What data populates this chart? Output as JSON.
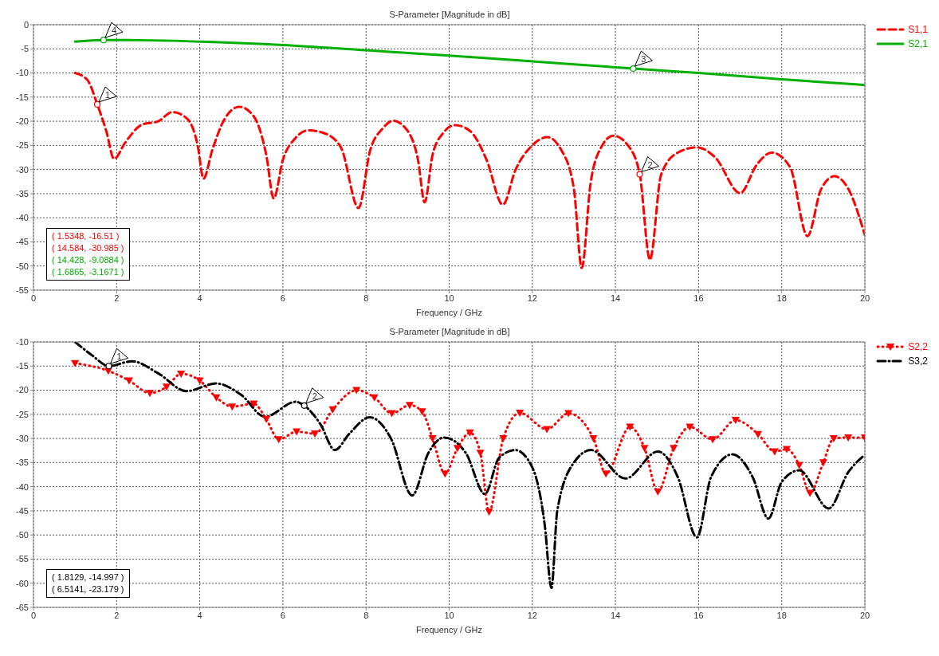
{
  "chart_data": [
    {
      "type": "line",
      "title": "S-Parameter [Magnitude in dB]",
      "xlabel": "Frequency / GHz",
      "xlim": [
        0,
        20
      ],
      "xticks": [
        0,
        2,
        4,
        6,
        8,
        10,
        12,
        14,
        16,
        18,
        20
      ],
      "ylim": [
        -55,
        0
      ],
      "yticks": [
        -55,
        -50,
        -45,
        -40,
        -35,
        -30,
        -25,
        -20,
        -15,
        -10,
        -5,
        0
      ],
      "grid": true,
      "legend": "top right",
      "series": [
        {
          "name": "S1,1",
          "color": "#ff0000",
          "line_style": "dashed",
          "marker": "none",
          "x": [
            1,
            1.3,
            1.5348,
            1.75,
            1.94,
            2.2,
            2.61,
            3.0,
            3.34,
            3.7,
            3.95,
            4.09,
            4.3,
            4.6,
            4.95,
            5.3,
            5.6,
            5.78,
            6.0,
            6.3,
            6.61,
            7.0,
            7.4,
            7.82,
            8.1,
            8.4,
            8.65,
            9.0,
            9.25,
            9.41,
            9.6,
            9.85,
            10.14,
            10.5,
            10.9,
            11.29,
            11.6,
            12.0,
            12.36,
            12.7,
            13.0,
            13.19,
            13.4,
            13.65,
            13.95,
            14.3,
            14.584,
            14.83,
            15.1,
            15.5,
            15.96,
            16.4,
            17.0,
            17.4,
            17.76,
            18.2,
            18.62,
            18.95,
            19.27,
            19.6,
            20
          ],
          "values": [
            -10,
            -11.5,
            -16.51,
            -22,
            -27.8,
            -24.5,
            -20.7,
            -20,
            -18.1,
            -19.5,
            -25,
            -31.9,
            -26,
            -19.5,
            -17.0,
            -19,
            -27,
            -36.0,
            -28,
            -23.5,
            -21.9,
            -22.5,
            -25.5,
            -38.0,
            -26,
            -21.5,
            -19.9,
            -22,
            -28,
            -36.8,
            -27,
            -22.5,
            -20.8,
            -22,
            -28,
            -37.3,
            -30,
            -25,
            -23.3,
            -26,
            -34,
            -50.4,
            -33,
            -25.5,
            -23.0,
            -25,
            -30.985,
            -48.7,
            -31,
            -26.5,
            -25.4,
            -27.5,
            -34.9,
            -29,
            -26.5,
            -29.5,
            -43.8,
            -34,
            -31.4,
            -34,
            -43.6
          ]
        },
        {
          "name": "S2,1",
          "color": "#00b000",
          "line_style": "solid",
          "marker": "none",
          "x": [
            1,
            1.6865,
            2.5,
            4,
            6,
            8,
            10,
            12,
            14.428,
            16,
            18,
            20
          ],
          "values": [
            -3.5,
            -3.1671,
            -3.2,
            -3.5,
            -4.2,
            -5.3,
            -6.4,
            -7.6,
            -9.0884,
            -10,
            -11.3,
            -12.5
          ]
        }
      ],
      "annotations": [
        {
          "text": "1",
          "x": 1.5348,
          "y": -16.51
        },
        {
          "text": "2",
          "x": 14.584,
          "y": -30.985
        },
        {
          "text": "3",
          "x": 14.428,
          "y": -9.0884
        },
        {
          "text": "4",
          "x": 1.6865,
          "y": -3.1671
        },
        "( 1.5348, -16.51 )",
        "( 14.584, -30.985 )",
        "( 14.428, -9.0884 )",
        "( 1.6865, -3.1671 )"
      ]
    },
    {
      "type": "line",
      "title": "S-Parameter [Magnitude in dB]",
      "xlabel": "Frequency / GHz",
      "xlim": [
        0,
        20
      ],
      "xticks": [
        0,
        2,
        4,
        6,
        8,
        10,
        12,
        14,
        16,
        18,
        20
      ],
      "ylim": [
        -65,
        -10
      ],
      "yticks": [
        -65,
        -60,
        -55,
        -50,
        -45,
        -40,
        -35,
        -30,
        -25,
        -20,
        -15,
        -10
      ],
      "grid": true,
      "legend": "top right",
      "series": [
        {
          "name": "S2,2",
          "color": "#ff0000",
          "line_style": "dotted",
          "marker": "triangle",
          "x": [
            1,
            1.8,
            2.3,
            2.8,
            3.2,
            3.55,
            4.0,
            4.4,
            4.78,
            5.3,
            5.6,
            5.9,
            6.33,
            6.77,
            7.2,
            7.77,
            8.2,
            8.62,
            9.05,
            9.35,
            9.6,
            9.9,
            10.2,
            10.5,
            10.75,
            10.96,
            11.3,
            11.7,
            12.35,
            12.87,
            13.47,
            13.77,
            14.35,
            14.7,
            15.02,
            15.4,
            15.79,
            16.34,
            16.89,
            17.43,
            17.83,
            18.12,
            18.42,
            18.68,
            19.0,
            19.25,
            19.6,
            20
          ],
          "values": [
            -14.4,
            -16,
            -18,
            -20.6,
            -19.3,
            -16.6,
            -18,
            -21.5,
            -23.4,
            -22.8,
            -26,
            -30.2,
            -28.6,
            -29,
            -24,
            -20.0,
            -21.5,
            -24.8,
            -23.1,
            -24.4,
            -30,
            -37.3,
            -32,
            -28.8,
            -33,
            -45.2,
            -30,
            -24.7,
            -28.1,
            -24.8,
            -30.0,
            -37.3,
            -27.6,
            -32,
            -41.0,
            -32,
            -27.6,
            -30.2,
            -26.2,
            -29.1,
            -32.7,
            -32.2,
            -35.5,
            -41.3,
            -35,
            -30.0,
            -29.8,
            -29.8
          ]
        },
        {
          "name": "S3,2",
          "color": "#000000",
          "line_style": "dashdot",
          "marker": "none",
          "x": [
            1,
            1.4,
            1.8129,
            2.37,
            3.0,
            3.68,
            4.39,
            5.0,
            5.57,
            6.31,
            6.5141,
            6.9,
            7.25,
            7.6,
            8.09,
            8.6,
            9.11,
            9.5,
            9.88,
            10.4,
            10.86,
            11.2,
            11.59,
            12.0,
            12.3,
            12.46,
            12.6,
            13.0,
            13.41,
            14.24,
            15.02,
            15.5,
            15.96,
            16.3,
            16.81,
            17.3,
            17.68,
            18.0,
            18.42,
            19.13,
            19.6,
            20
          ],
          "values": [
            -10,
            -12.7,
            -14.997,
            -14.0,
            -16.5,
            -20.2,
            -18.6,
            -21,
            -25.5,
            -22.4,
            -23.179,
            -27,
            -32.4,
            -29,
            -25.6,
            -30,
            -41.8,
            -33,
            -29.8,
            -33,
            -41.5,
            -34,
            -32.4,
            -36,
            -48,
            -61,
            -45,
            -35,
            -32.4,
            -38.3,
            -32.7,
            -38,
            -50.5,
            -38,
            -33.3,
            -38,
            -46.6,
            -39,
            -36.6,
            -44.5,
            -37,
            -33.4
          ]
        }
      ],
      "annotations": [
        {
          "text": "1",
          "x": 1.8129,
          "y": -14.997
        },
        {
          "text": "2",
          "x": 6.5141,
          "y": -23.179
        },
        "( 1.8129, -14.997 )",
        "( 6.5141, -23.179 )"
      ]
    }
  ]
}
